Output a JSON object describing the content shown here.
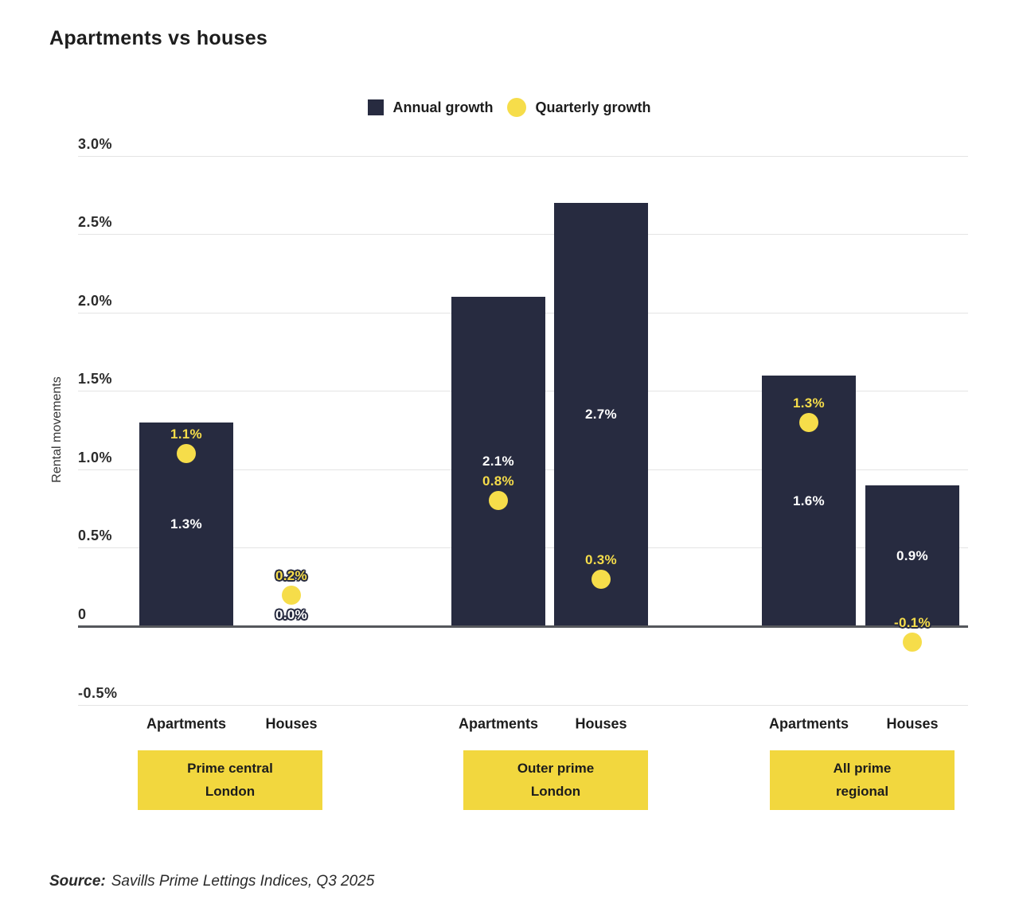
{
  "title": "Apartments vs houses",
  "legend": [
    {
      "label": "Annual growth",
      "swatch": "square",
      "color": "#272b40"
    },
    {
      "label": "Quarterly growth",
      "swatch": "circle",
      "color": "#f6dd4a"
    }
  ],
  "y_axis": {
    "title": "Rental movements",
    "ticks": [
      {
        "value": 3.0,
        "label": "3.0%"
      },
      {
        "value": 2.5,
        "label": "2.5%"
      },
      {
        "value": 2.0,
        "label": "2.0%"
      },
      {
        "value": 1.5,
        "label": "1.5%"
      },
      {
        "value": 1.0,
        "label": "1.0%"
      },
      {
        "value": 0.5,
        "label": "0.5%"
      },
      {
        "value": 0.0,
        "label": "0"
      },
      {
        "value": -0.5,
        "label": "-0.5%"
      }
    ]
  },
  "colors": {
    "annual_bar": "#272b40",
    "quarterly_dot": "#f6dd4a",
    "group_box": "#f2d73e",
    "gridline": "#e4e4e4",
    "baseline": "#55575c"
  },
  "source": {
    "prefix": "Source:",
    "text": "Savills Prime Lettings Indices, Q3 2025"
  },
  "chart_data": {
    "type": "bar",
    "title": "Apartments vs houses",
    "ylabel": "Rental movements",
    "ylim": [
      -0.5,
      3.0
    ],
    "unit": "percent",
    "grid": true,
    "legend_position": "top-center",
    "series_names": [
      "Annual growth",
      "Quarterly growth"
    ],
    "groups": [
      {
        "name": "Prime central London",
        "label_lines": [
          "Prime central",
          "London"
        ],
        "bars": [
          {
            "category": "Apartments",
            "annual": 1.3,
            "annual_label": "1.3%",
            "quarterly": 1.1,
            "quarterly_label": "1.1%"
          },
          {
            "category": "Houses",
            "annual": 0.0,
            "annual_label": "0.0%",
            "quarterly": 0.2,
            "quarterly_label": "0.2%"
          }
        ]
      },
      {
        "name": "Outer prime London",
        "label_lines": [
          "Outer prime",
          "London"
        ],
        "bars": [
          {
            "category": "Apartments",
            "annual": 2.1,
            "annual_label": "2.1%",
            "quarterly": 0.8,
            "quarterly_label": "0.8%"
          },
          {
            "category": "Houses",
            "annual": 2.7,
            "annual_label": "2.7%",
            "quarterly": 0.3,
            "quarterly_label": "0.3%"
          }
        ]
      },
      {
        "name": "All prime regional",
        "label_lines": [
          "All prime",
          "regional"
        ],
        "bars": [
          {
            "category": "Apartments",
            "annual": 1.6,
            "annual_label": "1.6%",
            "quarterly": 1.3,
            "quarterly_label": "1.3%"
          },
          {
            "category": "Houses",
            "annual": 0.9,
            "annual_label": "0.9%",
            "quarterly": -0.1,
            "quarterly_label": "-0.1%"
          }
        ]
      }
    ]
  }
}
